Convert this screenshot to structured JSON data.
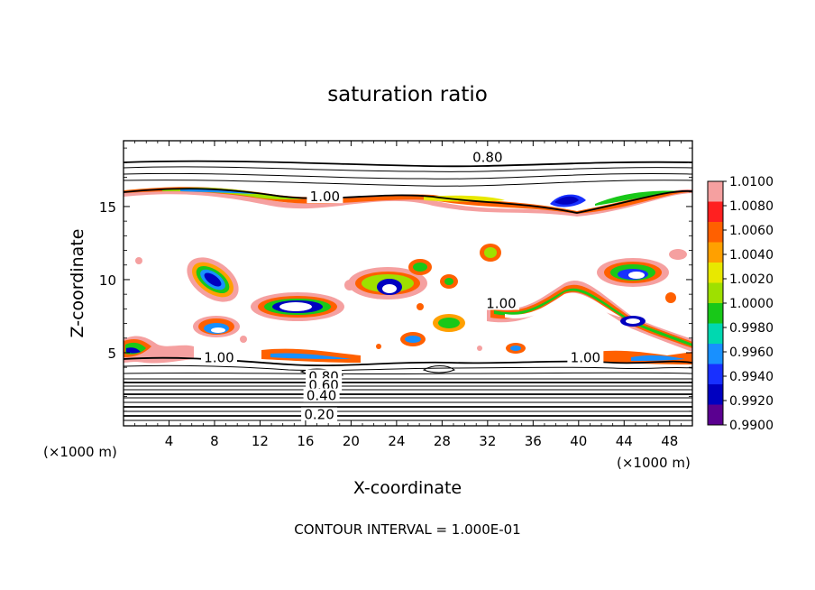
{
  "chart_data": {
    "type": "contour",
    "title": "saturation ratio",
    "xlabel": "X-coordinate",
    "ylabel": "Z-coordinate",
    "x_unit_left": "(×1000 m)",
    "x_unit_right": "(×1000 m)",
    "xlim": [
      0,
      50
    ],
    "ylim": [
      0,
      19.5
    ],
    "x_ticks": [
      "4",
      "8",
      "12",
      "16",
      "20",
      "24",
      "28",
      "32",
      "36",
      "40",
      "44",
      "48"
    ],
    "y_ticks": [
      "5",
      "10",
      "15"
    ],
    "footer": "CONTOUR INTERVAL = 1.000E-01",
    "contour_labels": [
      {
        "text": "0.80",
        "x": 32,
        "y": 18.3
      },
      {
        "text": "1.00",
        "x": 17.7,
        "y": 15.6
      },
      {
        "text": "1.00",
        "x": 33.2,
        "y": 8.3
      },
      {
        "text": "1.00",
        "x": 8.4,
        "y": 4.6
      },
      {
        "text": "1.00",
        "x": 40.6,
        "y": 4.6
      },
      {
        "text": "0.80",
        "x": 17.6,
        "y": 3.3
      },
      {
        "text": "0.60",
        "x": 17.6,
        "y": 2.7
      },
      {
        "text": "0.40",
        "x": 17.4,
        "y": 2.0
      },
      {
        "text": "0.20",
        "x": 17.2,
        "y": 0.7
      }
    ],
    "colorbar": {
      "labels": [
        "1.0100",
        "1.0080",
        "1.0060",
        "1.0040",
        "1.0020",
        "1.0000",
        "0.9980",
        "0.9960",
        "0.9940",
        "0.9920",
        "0.9900"
      ],
      "colors": [
        "#f5a0a0",
        "#ff2020",
        "#ff6000",
        "#ffa000",
        "#e8e800",
        "#9ee000",
        "#18c818",
        "#00d8b0",
        "#1890ff",
        "#1830ff",
        "#0000c0",
        "#5a0090"
      ]
    },
    "grid": false
  }
}
